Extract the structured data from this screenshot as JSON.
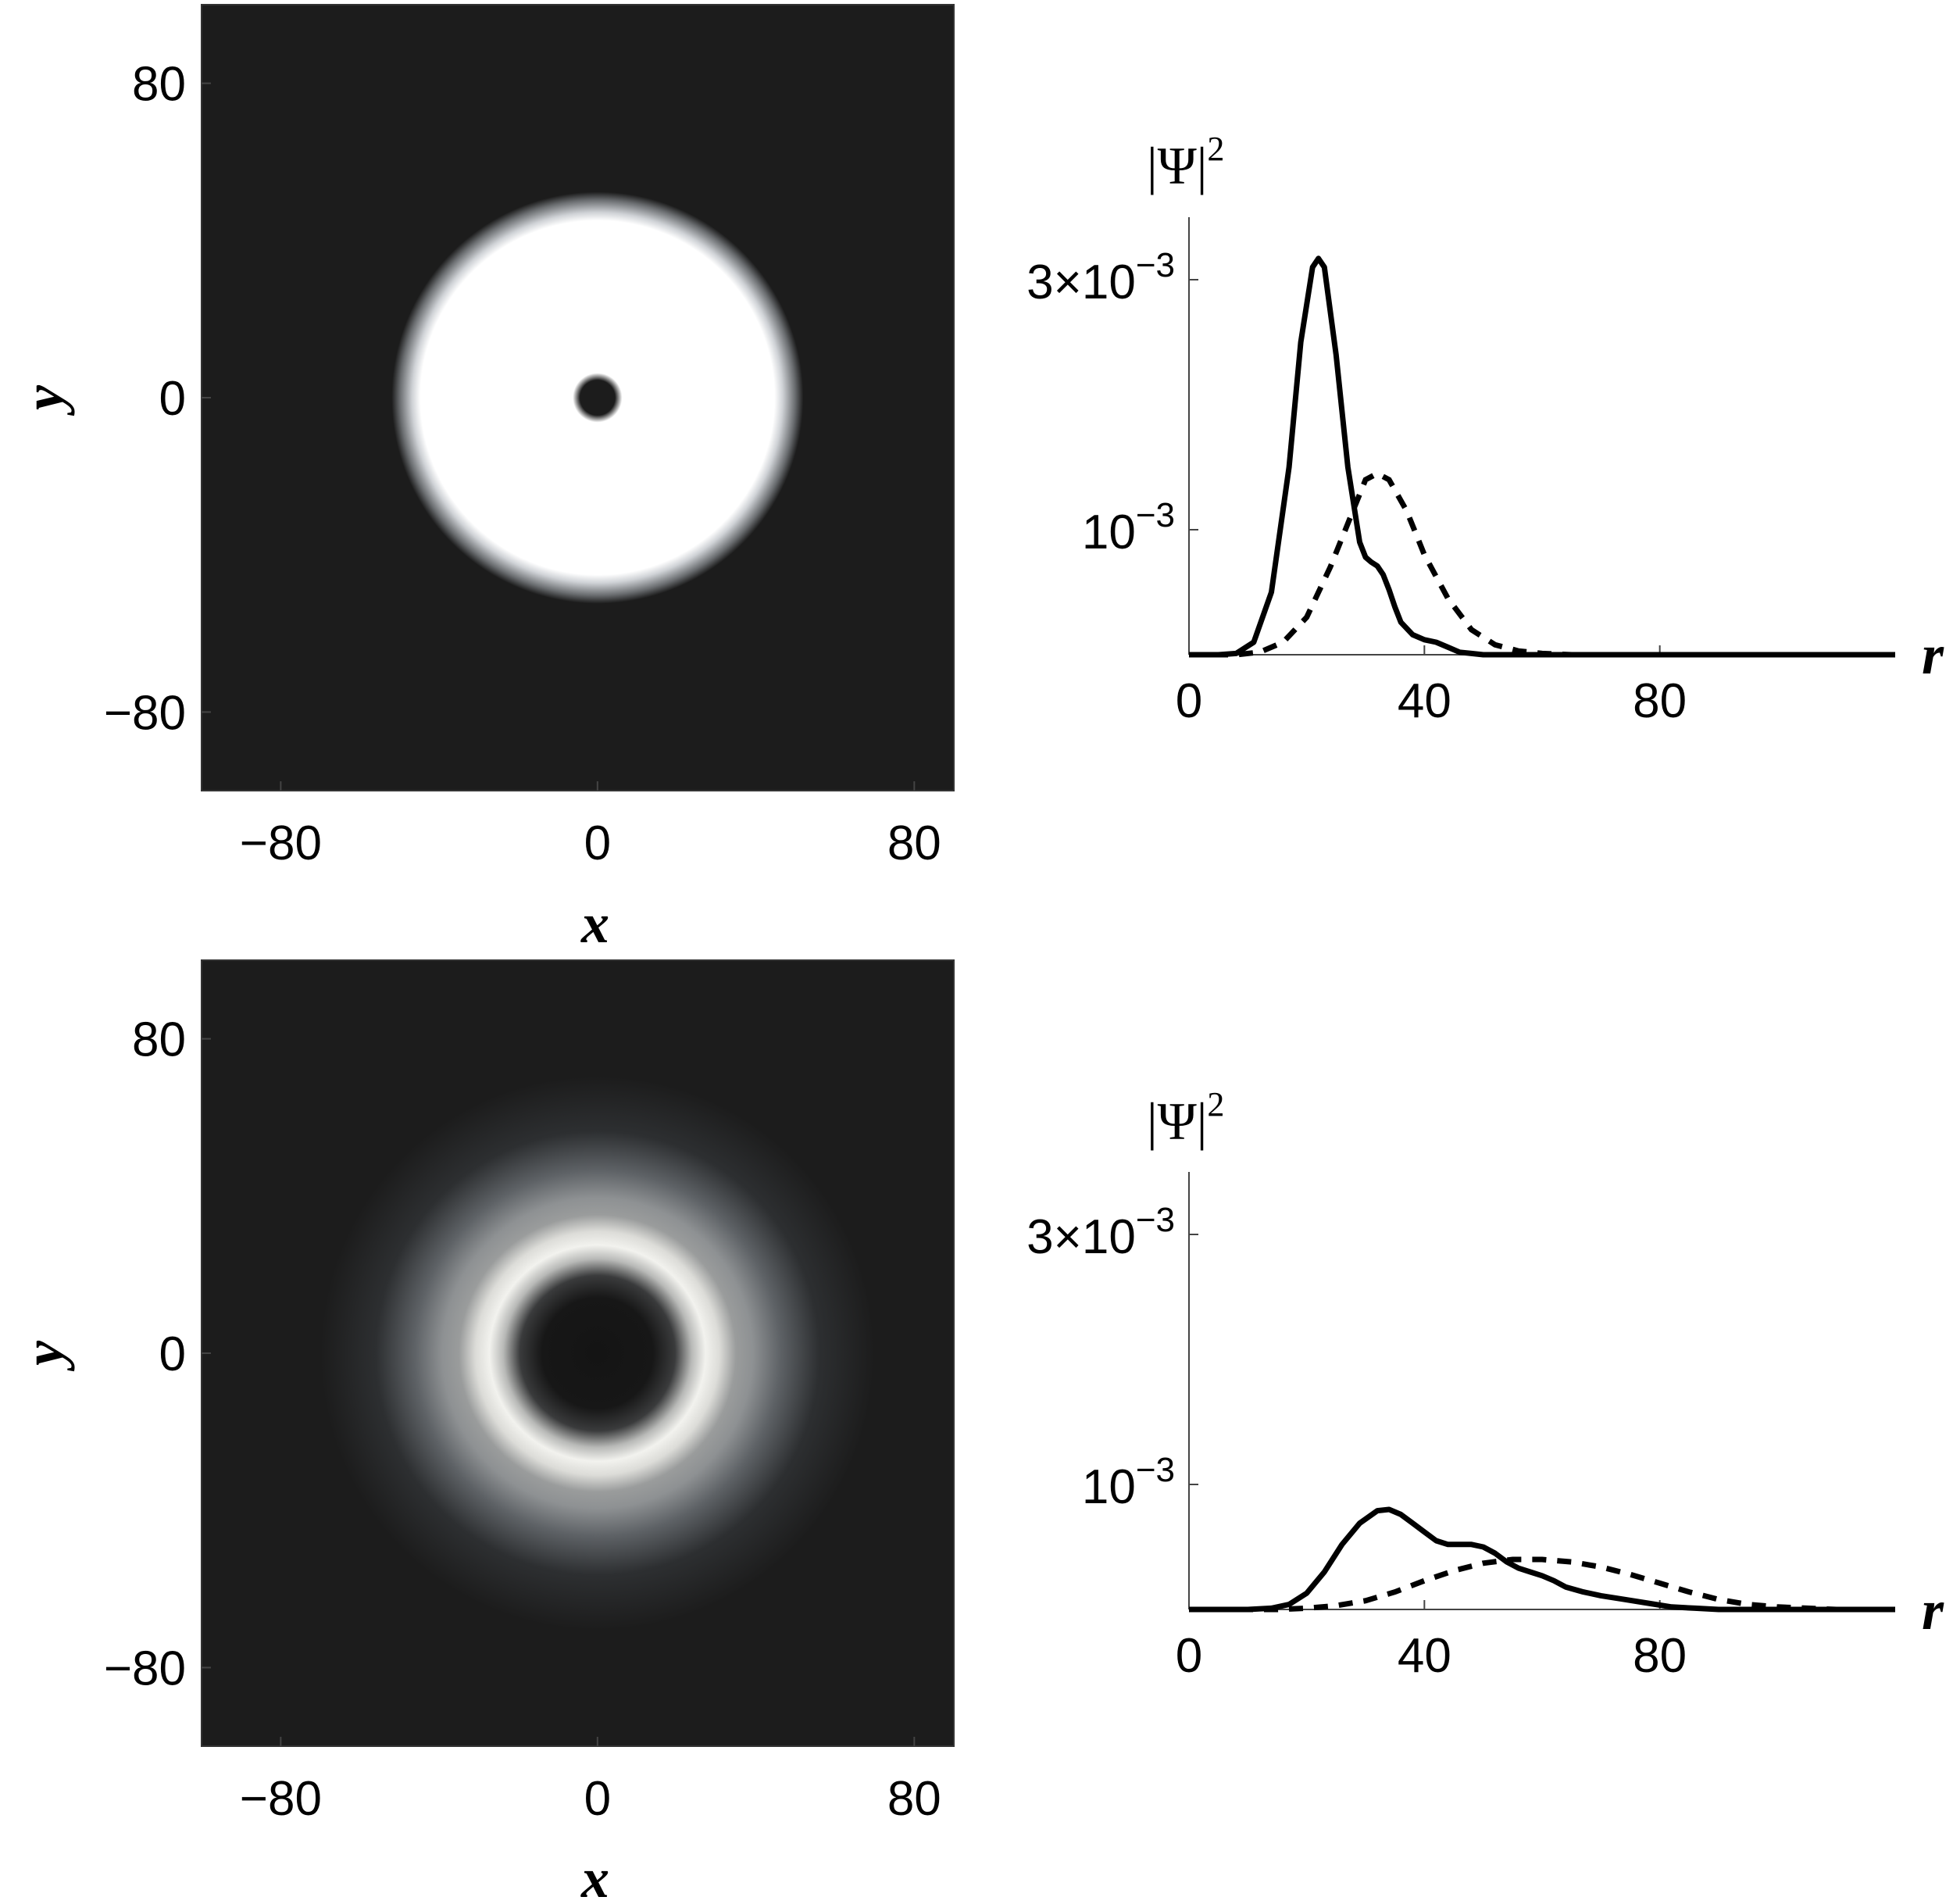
{
  "colors": {
    "background": "#1c1c1c",
    "line": "#000000"
  },
  "chart_data": [
    {
      "type": "heatmap",
      "panel": "top-left",
      "xlabel": "x",
      "ylabel": "y",
      "xlim": [
        -100,
        90
      ],
      "ylim": [
        -100,
        100
      ],
      "x_ticks": [
        "-80",
        "0",
        "80"
      ],
      "y_ticks": [
        "80",
        "0",
        "-80"
      ],
      "x_tick_values": [
        -80,
        0,
        80
      ],
      "y_tick_values": [
        80,
        0,
        -80
      ],
      "description_values": {
        "outer_radius": 47,
        "hole_radius": 7,
        "halo_radius": 52
      }
    },
    {
      "type": "line",
      "panel": "top-right",
      "ylabel": "|Ψ|",
      "ylabel_sup": "2",
      "xlabel": "r",
      "xlim": [
        0,
        120
      ],
      "ylim": [
        0,
        0.0035
      ],
      "x_ticks": [
        "0",
        "40",
        "80"
      ],
      "x_tick_values": [
        0,
        40,
        80
      ],
      "y_ticks": [
        {
          "value": 0.003,
          "base": "3×10",
          "exp": "−3"
        },
        {
          "value": 0.001,
          "base": "10",
          "exp": "−3"
        }
      ],
      "series": [
        {
          "style": "solid",
          "x": [
            0,
            5,
            8,
            11,
            14,
            17,
            19,
            21,
            22,
            23,
            25,
            27,
            29,
            30,
            31,
            32,
            33,
            34,
            35,
            36,
            38,
            40,
            42,
            44,
            46,
            48,
            50,
            55,
            60,
            120
          ],
          "values": [
            0,
            0,
            1e-05,
            0.0001,
            0.0005,
            0.0015,
            0.0025,
            0.0031,
            0.00317,
            0.0031,
            0.0024,
            0.0015,
            0.0009,
            0.00078,
            0.00074,
            0.00071,
            0.00064,
            0.00052,
            0.00038,
            0.00026,
            0.00016,
            0.00012,
            0.0001,
            6e-05,
            2e-05,
            1e-05,
            0,
            0,
            0,
            0
          ]
        },
        {
          "style": "dashed",
          "x": [
            0,
            8,
            12,
            16,
            20,
            24,
            27,
            30,
            32,
            34,
            37,
            40,
            44,
            48,
            52,
            56,
            60,
            65,
            120
          ],
          "values": [
            0,
            0,
            2e-05,
            0.0001,
            0.0003,
            0.0007,
            0.00105,
            0.0014,
            0.00145,
            0.0014,
            0.00115,
            0.0008,
            0.00045,
            0.0002,
            8e-05,
            3e-05,
            1e-05,
            0,
            0
          ]
        }
      ]
    },
    {
      "type": "heatmap",
      "panel": "bottom-left",
      "xlabel": "x",
      "ylabel": "y",
      "xlim": [
        -100,
        90
      ],
      "ylim": [
        -100,
        100
      ],
      "x_ticks": [
        "-80",
        "0",
        "80"
      ],
      "y_ticks": [
        "80",
        "0",
        "-80"
      ],
      "x_tick_values": [
        -80,
        0,
        80
      ],
      "y_tick_values": [
        80,
        0,
        -80
      ],
      "description_values": {
        "dark_core_radius": 25,
        "bright_ring_radius": 34,
        "outer_glow_radius": 70
      }
    },
    {
      "type": "line",
      "panel": "bottom-right",
      "ylabel": "|Ψ|",
      "ylabel_sup": "2",
      "xlabel": "r",
      "xlim": [
        0,
        120
      ],
      "ylim": [
        0,
        0.0035
      ],
      "x_ticks": [
        "0",
        "40",
        "80"
      ],
      "x_tick_values": [
        0,
        40,
        80
      ],
      "y_ticks": [
        {
          "value": 0.003,
          "base": "3×10",
          "exp": "−3"
        },
        {
          "value": 0.001,
          "base": "10",
          "exp": "−3"
        }
      ],
      "series": [
        {
          "style": "solid",
          "x": [
            0,
            10,
            14,
            17,
            20,
            23,
            26,
            29,
            32,
            34,
            36,
            38,
            40,
            42,
            44,
            46,
            48,
            50,
            52,
            54,
            56,
            58,
            60,
            62,
            64,
            67,
            70,
            74,
            78,
            82,
            86,
            90,
            95,
            120
          ],
          "values": [
            0,
            0,
            1e-05,
            4e-05,
            0.00013,
            0.0003,
            0.00052,
            0.00069,
            0.00079,
            0.0008,
            0.00076,
            0.00069,
            0.00062,
            0.00055,
            0.00052,
            0.00052,
            0.00052,
            0.0005,
            0.00045,
            0.00038,
            0.00033,
            0.0003,
            0.00027,
            0.00023,
            0.00018,
            0.00014,
            0.00011,
            8e-05,
            5e-05,
            2e-05,
            1e-05,
            0,
            0,
            0
          ]
        },
        {
          "style": "dashed",
          "x": [
            0,
            15,
            20,
            25,
            30,
            35,
            40,
            45,
            50,
            55,
            60,
            65,
            70,
            75,
            80,
            85,
            90,
            95,
            100,
            105,
            110,
            120
          ],
          "values": [
            0,
            0,
            1e-05,
            3e-05,
            7e-05,
            0.00014,
            0.00023,
            0.00031,
            0.00037,
            0.0004,
            0.0004,
            0.00038,
            0.00034,
            0.00028,
            0.00021,
            0.00014,
            8e-05,
            4e-05,
            2e-05,
            1e-05,
            0,
            0
          ]
        }
      ]
    }
  ]
}
